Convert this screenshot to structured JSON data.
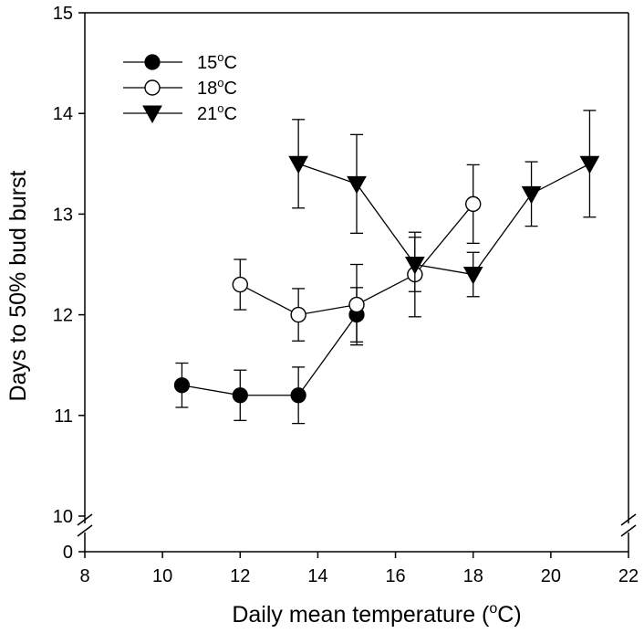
{
  "chart_data": {
    "type": "line",
    "title": "",
    "xlabel": "Daily mean temperature (",
    "xlabel_sup": "o",
    "xlabel_end": "C)",
    "ylabel": "Days to 50% bud burst",
    "xlim": [
      8,
      22
    ],
    "xticks": [
      "8",
      "10",
      "12",
      "14",
      "16",
      "18",
      "20",
      "22"
    ],
    "ylim": [
      10,
      15
    ],
    "yticks": [
      "10",
      "11",
      "12",
      "13",
      "14",
      "15"
    ],
    "y_break_label": "0",
    "axis_break": true,
    "legend_position": "top-left",
    "series": [
      {
        "name": "15",
        "unit_sup": "o",
        "unit": "C",
        "marker": "filled-circle",
        "x": [
          10.5,
          12,
          13.5,
          15
        ],
        "y": [
          11.3,
          11.2,
          11.2,
          12.0
        ],
        "err": [
          0.22,
          0.25,
          0.28,
          0.27
        ]
      },
      {
        "name": "18",
        "unit_sup": "o",
        "unit": "C",
        "marker": "open-circle",
        "x": [
          12,
          13.5,
          15,
          16.5,
          18
        ],
        "y": [
          12.3,
          12.0,
          12.1,
          12.4,
          13.1
        ],
        "err": [
          0.25,
          0.26,
          0.4,
          0.42,
          0.39
        ]
      },
      {
        "name": "21",
        "unit_sup": "o",
        "unit": "C",
        "marker": "filled-triangle-down",
        "x": [
          13.5,
          15,
          16.5,
          18,
          19.5,
          21
        ],
        "y": [
          13.5,
          13.3,
          12.5,
          12.4,
          13.2,
          13.5
        ],
        "err": [
          0.44,
          0.49,
          0.27,
          0.22,
          0.32,
          0.53
        ]
      }
    ]
  }
}
